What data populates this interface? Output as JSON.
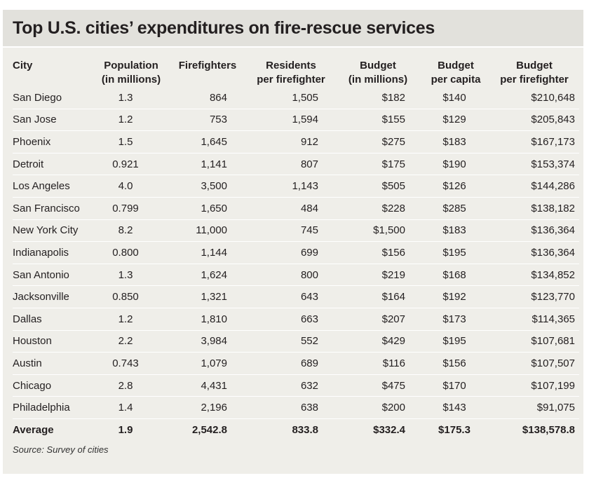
{
  "title": "Top U.S. cities’ expenditures on fire-rescue services",
  "source": "Source: Survey of cities",
  "colors": {
    "panel": "#efeee9",
    "title_bar": "#e2e1dc",
    "text": "#231f20"
  },
  "headers": {
    "city": "City",
    "population": [
      "Population",
      "(in millions)"
    ],
    "firefighters": "Firefighters",
    "residents": [
      "Residents",
      "per firefighter"
    ],
    "budget": [
      "Budget",
      "(in millions)"
    ],
    "per_capita": [
      "Budget",
      "per capita"
    ],
    "per_firefighter": [
      "Budget",
      "per firefighter"
    ]
  },
  "chart_data": {
    "type": "table",
    "title": "Top U.S. cities’ expenditures on fire-rescue services",
    "columns": [
      "City",
      "Population (in millions)",
      "Firefighters",
      "Residents per firefighter",
      "Budget (in millions)",
      "Budget per capita",
      "Budget per firefighter"
    ],
    "rows": [
      [
        "San Diego",
        "1.3",
        "864",
        "1,505",
        "$182",
        "$140",
        "$210,648"
      ],
      [
        "San Jose",
        "1.2",
        "753",
        "1,594",
        "$155",
        "$129",
        "$205,843"
      ],
      [
        "Phoenix",
        "1.5",
        "1,645",
        "912",
        "$275",
        "$183",
        "$167,173"
      ],
      [
        "Detroit",
        "0.921",
        "1,141",
        "807",
        "$175",
        "$190",
        "$153,374"
      ],
      [
        "Los Angeles",
        "4.0",
        "3,500",
        "1,143",
        "$505",
        "$126",
        "$144,286"
      ],
      [
        "San Francisco",
        "0.799",
        "1,650",
        "484",
        "$228",
        "$285",
        "$138,182"
      ],
      [
        "New York City",
        "8.2",
        "11,000",
        "745",
        "$1,500",
        "$183",
        "$136,364"
      ],
      [
        "Indianapolis",
        "0.800",
        "1,144",
        "699",
        "$156",
        "$195",
        "$136,364"
      ],
      [
        "San Antonio",
        "1.3",
        "1,624",
        "800",
        "$219",
        "$168",
        "$134,852"
      ],
      [
        "Jacksonville",
        "0.850",
        "1,321",
        "643",
        "$164",
        "$192",
        "$123,770"
      ],
      [
        "Dallas",
        "1.2",
        "1,810",
        "663",
        "$207",
        "$173",
        "$114,365"
      ],
      [
        "Houston",
        "2.2",
        "3,984",
        "552",
        "$429",
        "$195",
        "$107,681"
      ],
      [
        "Austin",
        "0.743",
        "1,079",
        "689",
        "$116",
        "$156",
        "$107,507"
      ],
      [
        "Chicago",
        "2.8",
        "4,431",
        "632",
        "$475",
        "$170",
        "$107,199"
      ],
      [
        "Philadelphia",
        "1.4",
        "2,196",
        "638",
        "$200",
        "$143",
        "$91,075"
      ]
    ],
    "average": [
      "Average",
      "1.9",
      "2,542.8",
      "833.8",
      "$332.4",
      "$175.3",
      "$138,578.8"
    ]
  }
}
